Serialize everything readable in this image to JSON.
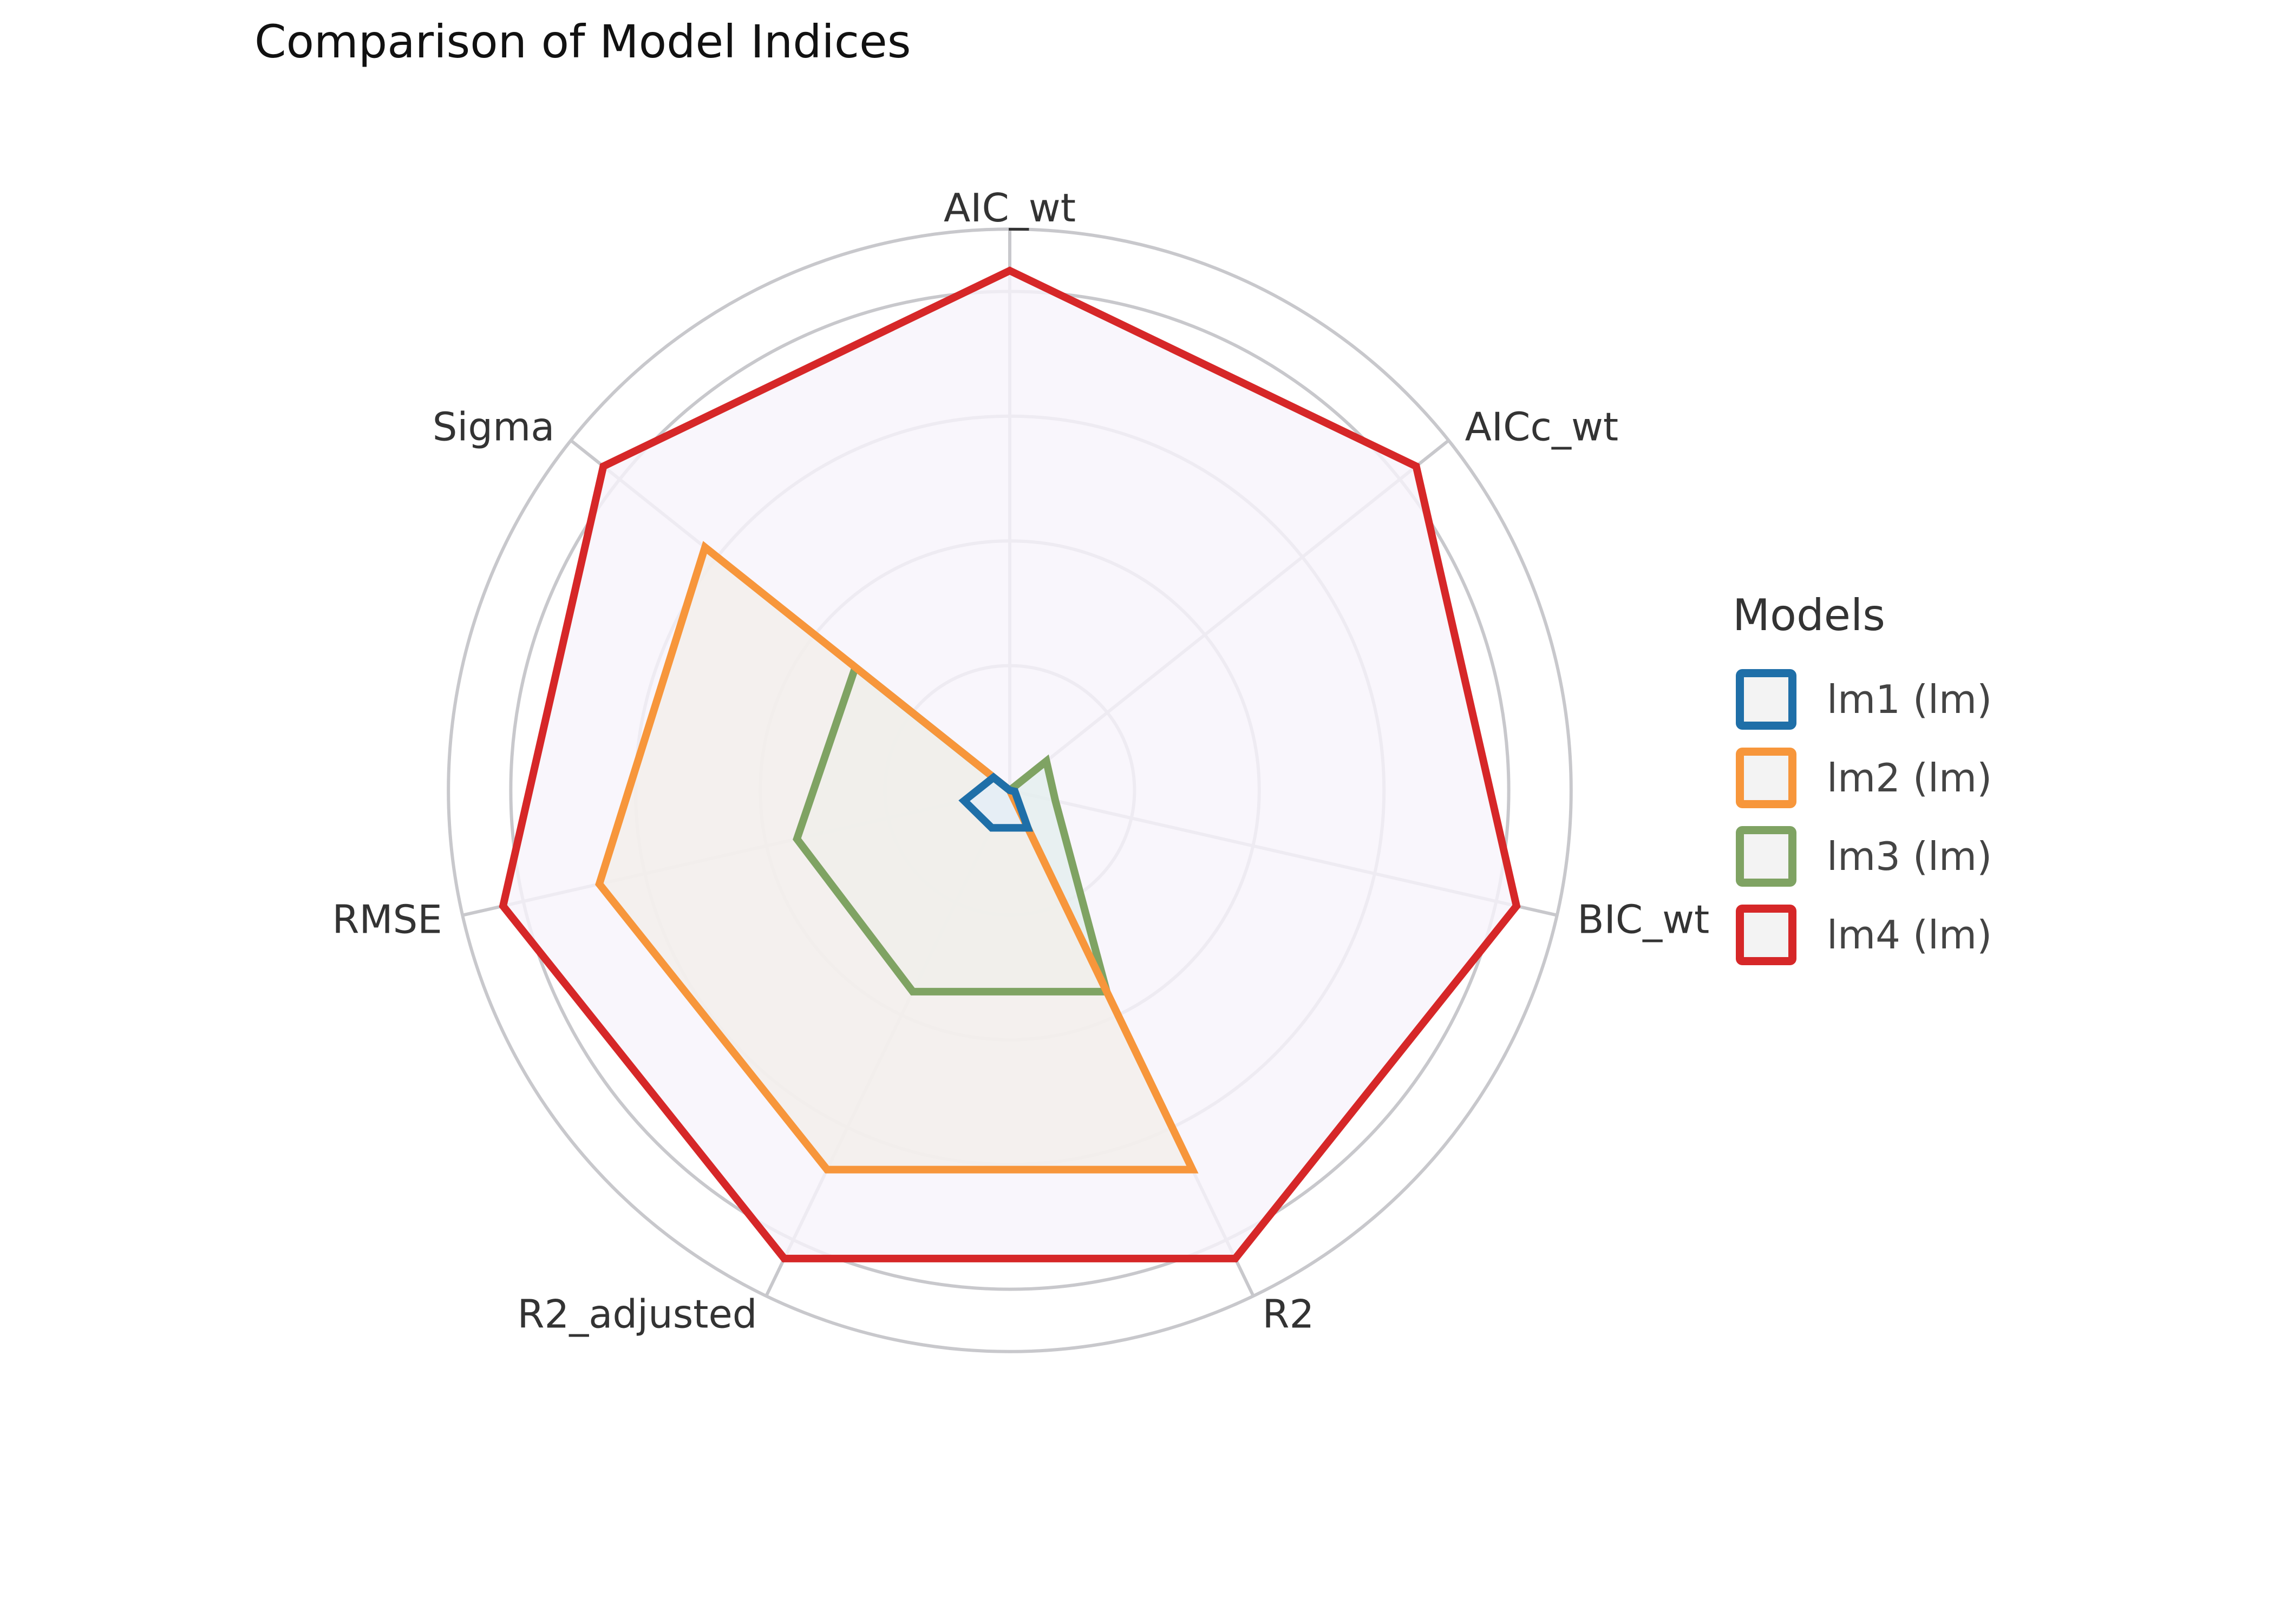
{
  "chart_data": {
    "type": "radar",
    "title": "Comparison of Model Indices",
    "axes": [
      "Sigma",
      "AIC_wt",
      "AICc_wt",
      "BIC_wt",
      "R2",
      "R2_adjusted",
      "RMSE"
    ],
    "rlim": [
      0,
      1
    ],
    "grid": true,
    "series": [
      {
        "name": "lm1 (lm)",
        "color": "#1f6fa8",
        "fill": "#e4eef7",
        "values": [
          0.04,
          0.0,
          0.0,
          0.01,
          0.08,
          0.08,
          0.09
        ]
      },
      {
        "name": "lm2 (lm)",
        "color": "#f7963b",
        "fill": "#f3efea",
        "values": [
          0.75,
          0.0,
          0.0,
          0.0,
          0.81,
          0.81,
          0.81
        ]
      },
      {
        "name": "lm3 (lm)",
        "color": "#7fa363",
        "fill": "#e4efee",
        "values": [
          0.38,
          0.0,
          0.09,
          0.09,
          0.43,
          0.43,
          0.42
        ]
      },
      {
        "name": "lm4 (lm)",
        "color": "#d62728",
        "fill": "#f7f4fb",
        "values": [
          1.0,
          1.0,
          1.0,
          1.0,
          1.0,
          1.0,
          1.0
        ]
      }
    ]
  },
  "legend": {
    "title": "Models",
    "placement": "right"
  }
}
